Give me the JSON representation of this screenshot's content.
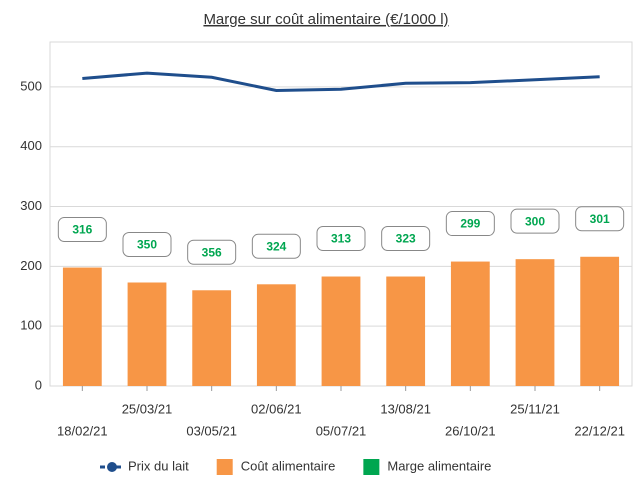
{
  "chart_data": {
    "type": "bar_line",
    "title": "Marge sur coût alimentaire (€/1000 l)",
    "categories": [
      "18/02/21",
      "25/03/21",
      "03/05/21",
      "02/06/21",
      "05/07/21",
      "13/08/21",
      "26/10/21",
      "25/11/21",
      "22/12/21"
    ],
    "series": [
      {
        "name": "Prix du lait",
        "type": "line",
        "color": "#1f4e8c",
        "values": [
          514,
          523,
          516,
          494,
          496,
          506,
          507,
          512,
          517
        ]
      },
      {
        "name": "Coût alimentaire",
        "type": "bar",
        "color": "#f79646",
        "values": [
          198,
          173,
          160,
          170,
          183,
          183,
          208,
          212,
          216
        ]
      },
      {
        "name": "Marge alimentaire",
        "type": "label",
        "color": "#00a650",
        "values": [
          316,
          350,
          356,
          324,
          313,
          323,
          299,
          300,
          301
        ]
      }
    ],
    "ylim": [
      0,
      575
    ],
    "yticks": [
      0,
      100,
      200,
      300,
      400,
      500
    ],
    "grid": true
  }
}
